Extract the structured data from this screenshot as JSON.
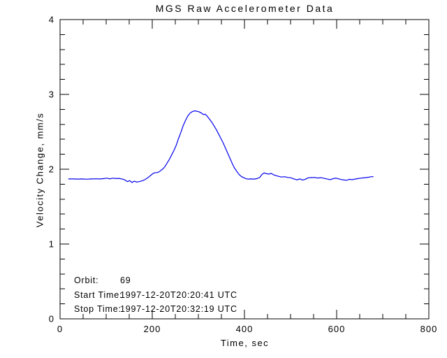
{
  "colors": {
    "background": "#ffffff",
    "axis": "#000000",
    "text": "#000000",
    "line": "#0000ee"
  },
  "chart_data": {
    "type": "line",
    "title": "MGS Raw Accelerometer Data",
    "xlabel": "Time, sec",
    "ylabel": "Velocity Change, mm/s",
    "xlim": [
      0,
      800
    ],
    "ylim": [
      0,
      4
    ],
    "x_major_ticks": [
      0,
      200,
      400,
      600,
      800
    ],
    "x_minor_step": 50,
    "y_major_ticks": [
      0,
      1,
      2,
      3,
      4
    ],
    "y_minor_step": 0.2,
    "grid": false,
    "legend": "none",
    "annotations": [
      {
        "label": "Orbit:",
        "value": "69"
      },
      {
        "label": "Start Time:",
        "value": "1997-12-20T20:20:41 UTC"
      },
      {
        "label": "Stop Time:",
        "value": "1997-12-20T20:32:19 UTC"
      }
    ],
    "series": [
      {
        "name": "velocity-change",
        "color": "#0000ee",
        "points": [
          [
            18,
            1.87
          ],
          [
            28,
            1.87
          ],
          [
            38,
            1.868
          ],
          [
            48,
            1.87
          ],
          [
            58,
            1.866
          ],
          [
            68,
            1.87
          ],
          [
            78,
            1.872
          ],
          [
            88,
            1.87
          ],
          [
            95,
            1.875
          ],
          [
            102,
            1.88
          ],
          [
            108,
            1.872
          ],
          [
            115,
            1.88
          ],
          [
            122,
            1.875
          ],
          [
            128,
            1.878
          ],
          [
            134,
            1.87
          ],
          [
            140,
            1.858
          ],
          [
            146,
            1.835
          ],
          [
            151,
            1.848
          ],
          [
            156,
            1.822
          ],
          [
            161,
            1.84
          ],
          [
            166,
            1.828
          ],
          [
            172,
            1.835
          ],
          [
            178,
            1.845
          ],
          [
            184,
            1.86
          ],
          [
            190,
            1.885
          ],
          [
            196,
            1.915
          ],
          [
            202,
            1.945
          ],
          [
            207,
            1.955
          ],
          [
            212,
            1.955
          ],
          [
            217,
            1.975
          ],
          [
            222,
            2.0
          ],
          [
            227,
            2.03
          ],
          [
            232,
            2.08
          ],
          [
            237,
            2.13
          ],
          [
            242,
            2.19
          ],
          [
            247,
            2.25
          ],
          [
            252,
            2.32
          ],
          [
            257,
            2.41
          ],
          [
            262,
            2.49
          ],
          [
            267,
            2.58
          ],
          [
            272,
            2.65
          ],
          [
            277,
            2.71
          ],
          [
            282,
            2.75
          ],
          [
            287,
            2.77
          ],
          [
            292,
            2.78
          ],
          [
            297,
            2.775
          ],
          [
            302,
            2.765
          ],
          [
            307,
            2.75
          ],
          [
            311,
            2.73
          ],
          [
            315,
            2.735
          ],
          [
            319,
            2.71
          ],
          [
            324,
            2.67
          ],
          [
            329,
            2.63
          ],
          [
            334,
            2.58
          ],
          [
            339,
            2.53
          ],
          [
            344,
            2.47
          ],
          [
            349,
            2.41
          ],
          [
            354,
            2.35
          ],
          [
            359,
            2.28
          ],
          [
            364,
            2.21
          ],
          [
            369,
            2.14
          ],
          [
            374,
            2.07
          ],
          [
            379,
            2.01
          ],
          [
            384,
            1.965
          ],
          [
            389,
            1.925
          ],
          [
            394,
            1.9
          ],
          [
            399,
            1.885
          ],
          [
            404,
            1.872
          ],
          [
            409,
            1.868
          ],
          [
            415,
            1.87
          ],
          [
            421,
            1.868
          ],
          [
            427,
            1.875
          ],
          [
            433,
            1.89
          ],
          [
            438,
            1.93
          ],
          [
            443,
            1.95
          ],
          [
            448,
            1.94
          ],
          [
            453,
            1.935
          ],
          [
            458,
            1.945
          ],
          [
            463,
            1.925
          ],
          [
            468,
            1.915
          ],
          [
            474,
            1.905
          ],
          [
            480,
            1.895
          ],
          [
            487,
            1.9
          ],
          [
            494,
            1.89
          ],
          [
            501,
            1.885
          ],
          [
            508,
            1.868
          ],
          [
            514,
            1.858
          ],
          [
            520,
            1.87
          ],
          [
            526,
            1.855
          ],
          [
            532,
            1.865
          ],
          [
            538,
            1.885
          ],
          [
            545,
            1.888
          ],
          [
            552,
            1.89
          ],
          [
            559,
            1.882
          ],
          [
            566,
            1.887
          ],
          [
            573,
            1.878
          ],
          [
            580,
            1.868
          ],
          [
            586,
            1.86
          ],
          [
            592,
            1.873
          ],
          [
            598,
            1.88
          ],
          [
            604,
            1.872
          ],
          [
            610,
            1.862
          ],
          [
            616,
            1.856
          ],
          [
            622,
            1.852
          ],
          [
            628,
            1.865
          ],
          [
            634,
            1.86
          ],
          [
            640,
            1.868
          ],
          [
            646,
            1.875
          ],
          [
            652,
            1.88
          ],
          [
            658,
            1.884
          ],
          [
            664,
            1.888
          ],
          [
            670,
            1.893
          ],
          [
            675,
            1.9
          ],
          [
            680,
            1.9
          ]
        ]
      }
    ]
  }
}
